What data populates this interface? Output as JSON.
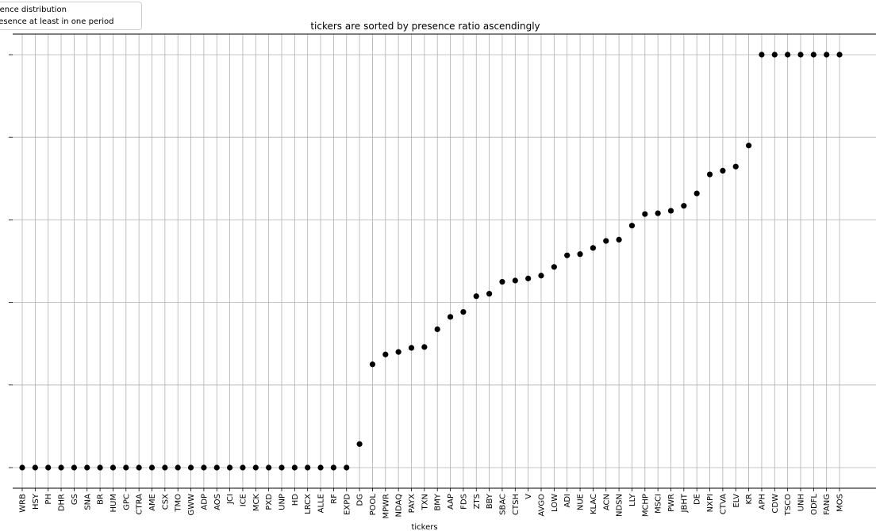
{
  "chart_data": {
    "type": "scatter",
    "title": "tickers are sorted by presence ratio ascendingly",
    "xlabel": "tickers",
    "ylabel": "",
    "ylim": [
      0,
      1
    ],
    "grid": true,
    "legend": {
      "placement": "top-left",
      "entries": [
        "presence distribution",
        "presence at least in one period"
      ]
    },
    "categories": [
      "WRB",
      "HSY",
      "PH",
      "DHR",
      "GS",
      "SNA",
      "BR",
      "HUM",
      "GPC",
      "CTRA",
      "AME",
      "CSX",
      "TMO",
      "GWW",
      "ADP",
      "AOS",
      "JCI",
      "ICE",
      "MCK",
      "PXD",
      "UNP",
      "HD",
      "LRCX",
      "ALLE",
      "RF",
      "EXPD",
      "DG",
      "POOL",
      "MPWR",
      "NDAQ",
      "PAYX",
      "TXN",
      "BMY",
      "AAP",
      "FDS",
      "ZTS",
      "BBY",
      "SBAC",
      "CTSH",
      "V",
      "AVGO",
      "LOW",
      "ADI",
      "NUE",
      "KLAC",
      "ACN",
      "NDSN",
      "LLY",
      "MCHP",
      "MSCI",
      "PWR",
      "JBHT",
      "DE",
      "NXPI",
      "CTVA",
      "ELV",
      "KR",
      "APH",
      "CDW",
      "TSCO",
      "UNH",
      "ODFL",
      "FANG",
      "MOS"
    ],
    "values": [
      0,
      0,
      0,
      0,
      0,
      0,
      0,
      0,
      0,
      0,
      0,
      0,
      0,
      0,
      0,
      0,
      0,
      0,
      0,
      0,
      0,
      0,
      0,
      0,
      0,
      0,
      0.057,
      0.25,
      0.274,
      0.28,
      0.29,
      0.292,
      0.335,
      0.365,
      0.377,
      0.415,
      0.421,
      0.45,
      0.453,
      0.458,
      0.465,
      0.486,
      0.514,
      0.517,
      0.532,
      0.549,
      0.552,
      0.586,
      0.614,
      0.616,
      0.622,
      0.634,
      0.664,
      0.71,
      0.719,
      0.729,
      0.78,
      1,
      1,
      1,
      1,
      1,
      1,
      1
    ]
  }
}
